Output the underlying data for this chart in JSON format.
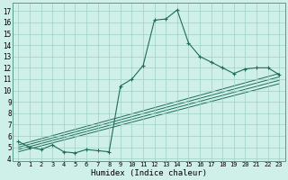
{
  "title": "",
  "xlabel": "Humidex (Indice chaleur)",
  "xlim": [
    -0.5,
    23.5
  ],
  "ylim": [
    3.8,
    17.7
  ],
  "yticks": [
    4,
    5,
    6,
    7,
    8,
    9,
    10,
    11,
    12,
    13,
    14,
    15,
    16,
    17
  ],
  "xticks": [
    0,
    1,
    2,
    3,
    4,
    5,
    6,
    7,
    8,
    9,
    10,
    11,
    12,
    13,
    14,
    15,
    16,
    17,
    18,
    19,
    20,
    21,
    22,
    23
  ],
  "bg_color": "#cef0e8",
  "line_color": "#1e6b5a",
  "grid_color": "#9fcfc4",
  "main_line": {
    "x": [
      0,
      1,
      2,
      3,
      4,
      5,
      6,
      7,
      8,
      9,
      10,
      11,
      12,
      13,
      14,
      15,
      16,
      17,
      18,
      19,
      20,
      21,
      22,
      23
    ],
    "y": [
      5.5,
      5.0,
      4.8,
      5.2,
      4.6,
      4.5,
      4.8,
      4.7,
      4.6,
      10.4,
      11.0,
      12.2,
      16.2,
      16.3,
      17.1,
      14.2,
      13.0,
      12.5,
      12.0,
      11.5,
      11.9,
      12.0,
      12.0,
      11.4
    ]
  },
  "spike_line": {
    "x": [
      8,
      9
    ],
    "y": [
      4.6,
      10.4
    ]
  },
  "straight_lines": [
    {
      "x": [
        0,
        23
      ],
      "y": [
        5.2,
        11.5
      ]
    },
    {
      "x": [
        0,
        23
      ],
      "y": [
        5.0,
        11.2
      ]
    },
    {
      "x": [
        0,
        23
      ],
      "y": [
        4.8,
        10.9
      ]
    },
    {
      "x": [
        0,
        23
      ],
      "y": [
        4.6,
        10.6
      ]
    }
  ]
}
